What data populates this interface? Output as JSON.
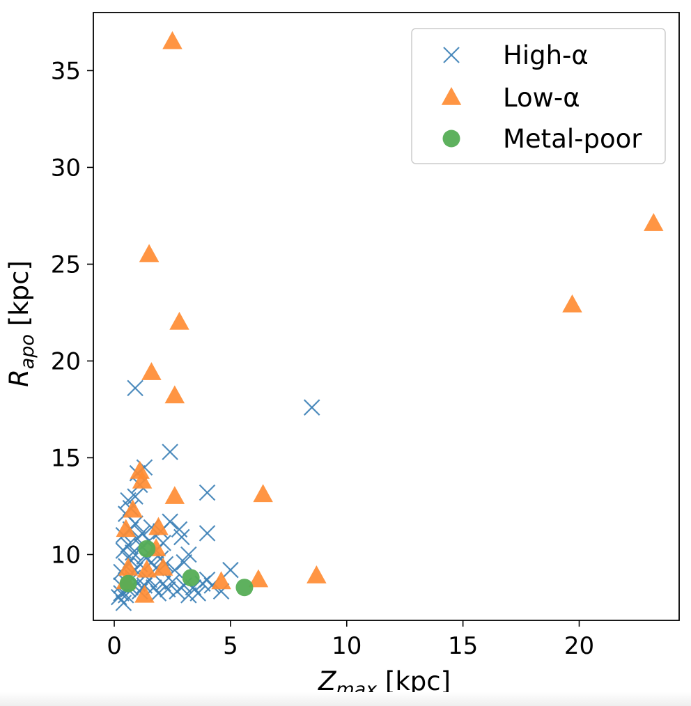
{
  "chart_data": {
    "type": "scatter",
    "title": "",
    "xlabel": {
      "main": "Z",
      "sub": "max",
      "unit": " [kpc]"
    },
    "ylabel": {
      "main": "R",
      "sub": "apo",
      "unit": " [kpc]"
    },
    "xlim": [
      -0.9,
      24.3
    ],
    "ylim": [
      6.6,
      38.0
    ],
    "xticks": [
      0,
      5,
      10,
      15,
      20
    ],
    "yticks": [
      10,
      15,
      20,
      25,
      30,
      35
    ],
    "grid": false,
    "legend_position": "top-right",
    "series": [
      {
        "name": "High-α",
        "marker": "x",
        "color": "#3b7fb6",
        "points": [
          [
            0.2,
            7.8
          ],
          [
            0.3,
            8.0
          ],
          [
            0.4,
            7.5
          ],
          [
            0.5,
            7.9
          ],
          [
            0.6,
            8.2
          ],
          [
            0.3,
            8.4
          ],
          [
            0.5,
            8.6
          ],
          [
            0.7,
            8.3
          ],
          [
            0.8,
            8.8
          ],
          [
            1.0,
            8.5
          ],
          [
            1.1,
            8.1
          ],
          [
            1.3,
            8.4
          ],
          [
            1.5,
            8.7
          ],
          [
            1.7,
            8.3
          ],
          [
            1.9,
            8.0
          ],
          [
            2.1,
            8.5
          ],
          [
            2.3,
            8.2
          ],
          [
            2.5,
            8.6
          ],
          [
            2.7,
            8.1
          ],
          [
            3.0,
            8.4
          ],
          [
            3.2,
            7.9
          ],
          [
            3.4,
            8.3
          ],
          [
            3.6,
            8.0
          ],
          [
            3.8,
            8.5
          ],
          [
            4.0,
            8.7
          ],
          [
            4.2,
            8.4
          ],
          [
            4.6,
            8.1
          ],
          [
            5.0,
            9.2
          ],
          [
            0.3,
            9.1
          ],
          [
            0.5,
            9.4
          ],
          [
            0.7,
            9.7
          ],
          [
            0.9,
            9.2
          ],
          [
            1.1,
            9.5
          ],
          [
            1.3,
            9.9
          ],
          [
            1.6,
            9.6
          ],
          [
            1.8,
            9.3
          ],
          [
            2.0,
            9.8
          ],
          [
            2.2,
            9.5
          ],
          [
            2.6,
            9.2
          ],
          [
            3.0,
            9.6
          ],
          [
            0.4,
            10.2
          ],
          [
            0.6,
            10.5
          ],
          [
            0.8,
            10.1
          ],
          [
            1.0,
            10.8
          ],
          [
            1.2,
            10.4
          ],
          [
            1.5,
            10.7
          ],
          [
            1.8,
            10.2
          ],
          [
            2.1,
            10.6
          ],
          [
            2.9,
            10.9
          ],
          [
            3.2,
            10.0
          ],
          [
            0.4,
            11.0
          ],
          [
            0.7,
            11.3
          ],
          [
            0.9,
            11.6
          ],
          [
            1.2,
            11.1
          ],
          [
            1.6,
            11.4
          ],
          [
            2.0,
            11.2
          ],
          [
            2.4,
            11.7
          ],
          [
            2.8,
            11.3
          ],
          [
            4.0,
            11.1
          ],
          [
            0.5,
            12.1
          ],
          [
            0.7,
            12.4
          ],
          [
            0.6,
            12.8
          ],
          [
            0.9,
            13.0
          ],
          [
            1.1,
            13.6
          ],
          [
            1.0,
            14.2
          ],
          [
            1.3,
            14.5
          ],
          [
            2.4,
            15.3
          ],
          [
            4.0,
            13.2
          ],
          [
            0.9,
            18.6
          ],
          [
            8.5,
            17.6
          ]
        ]
      },
      {
        "name": "Low-α",
        "marker": "triangle",
        "color": "#ff8c33",
        "points": [
          [
            2.5,
            36.5
          ],
          [
            23.2,
            27.1
          ],
          [
            1.5,
            25.5
          ],
          [
            19.7,
            22.9
          ],
          [
            2.8,
            22.0
          ],
          [
            1.6,
            19.4
          ],
          [
            2.6,
            18.2
          ],
          [
            1.1,
            14.3
          ],
          [
            1.2,
            13.8
          ],
          [
            2.6,
            13.0
          ],
          [
            6.4,
            13.1
          ],
          [
            0.8,
            12.3
          ],
          [
            0.5,
            11.3
          ],
          [
            1.9,
            11.4
          ],
          [
            1.8,
            10.3
          ],
          [
            0.6,
            9.3
          ],
          [
            1.4,
            9.2
          ],
          [
            2.1,
            9.3
          ],
          [
            0.5,
            8.6
          ],
          [
            4.6,
            8.6
          ],
          [
            6.2,
            8.7
          ],
          [
            8.7,
            8.9
          ],
          [
            1.3,
            7.9
          ]
        ]
      },
      {
        "name": "Metal-poor",
        "marker": "circle",
        "color": "#55ad55",
        "points": [
          [
            1.4,
            10.3
          ],
          [
            0.6,
            8.5
          ],
          [
            3.3,
            8.8
          ],
          [
            5.6,
            8.3
          ]
        ]
      }
    ]
  }
}
